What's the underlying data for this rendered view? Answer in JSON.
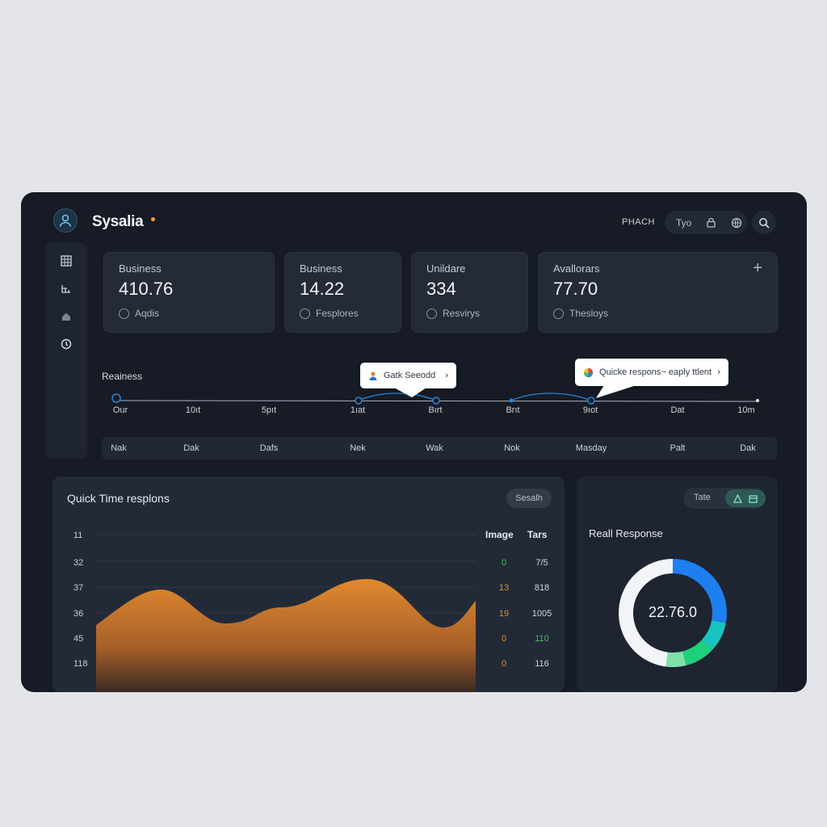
{
  "app": {
    "brand": "Sysalia"
  },
  "topbar": {
    "label": "PHACH",
    "pill_text": "Tyo",
    "lock_icon": "lock-icon",
    "globe_icon": "globe-icon",
    "search_icon": "search-icon"
  },
  "sidebar": {
    "items": [
      {
        "icon": "grid-icon"
      },
      {
        "icon": "hierarchy-icon"
      },
      {
        "icon": "home-icon"
      },
      {
        "icon": "clock-icon"
      }
    ]
  },
  "cards": [
    {
      "label": "Business",
      "value": "410.76",
      "sub": "Aqdis"
    },
    {
      "label": "Business",
      "value": "14.22",
      "sub": "Fesplores"
    },
    {
      "label": "Unildare",
      "value": "334",
      "sub": "Resvirys"
    },
    {
      "label": "Avallorars",
      "value": "77.70",
      "sub": "Thesloys",
      "action": "+"
    }
  ],
  "timeline": {
    "title": "Reainess",
    "ticks": [
      "Our",
      "10ıt",
      "5pıt",
      "1ıat",
      "Bırt",
      "Brıt",
      "9ıot",
      "Dat",
      "10m"
    ],
    "tooltip_left": "Gatk Seeodd",
    "tooltip_right": "Quicke respons~ eaply ttlent"
  },
  "days": [
    "Nak",
    "Dak",
    "Dafs",
    "Nek",
    "Wak",
    "Nok",
    "Masday",
    "Palt",
    "Dak"
  ],
  "quick_time": {
    "title": "Quick Time resplons",
    "button": "Sesalh",
    "y_labels": [
      "11",
      "32",
      "37",
      "36",
      "45",
      "118"
    ],
    "table": {
      "headers": [
        "Image",
        "Tars"
      ],
      "rows": [
        {
          "image": "0",
          "tars": "7/5",
          "color": "#3fbf5a"
        },
        {
          "image": "13",
          "tars": "818",
          "color": "#e68a2e"
        },
        {
          "image": "19",
          "tars": "1005",
          "color": "#e68a2e"
        },
        {
          "image": "0",
          "tars": "110",
          "color": "#e68a2e"
        },
        {
          "image": "0",
          "tars": "116",
          "color": "#e68a2e"
        }
      ]
    },
    "accent": "#e08a2e"
  },
  "real_response": {
    "title": "Reall Response",
    "center_value": "22.76.0",
    "toggle_label": "Tate",
    "donut": [
      {
        "label": "blue",
        "value": 28,
        "color": "#1e7ff0"
      },
      {
        "label": "teal",
        "value": 9,
        "color": "#18c3c0"
      },
      {
        "label": "green",
        "value": 9,
        "color": "#1fd07a"
      },
      {
        "label": "light-green",
        "value": 6,
        "color": "#7ee0a8"
      },
      {
        "label": "white",
        "value": 48,
        "color": "#f2f4f7"
      }
    ]
  }
}
